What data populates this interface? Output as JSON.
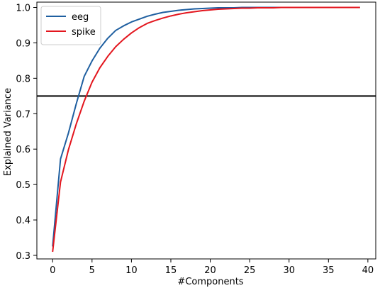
{
  "chart_data": {
    "type": "line",
    "title": "",
    "xlabel": "#Components",
    "ylabel": "Explained Variance",
    "xlim": [
      -2,
      41
    ],
    "ylim": [
      0.29,
      1.015
    ],
    "xticks": [
      "0",
      "5",
      "10",
      "15",
      "20",
      "25",
      "30",
      "35",
      "40"
    ],
    "yticks": [
      "0.3",
      "0.4",
      "0.5",
      "0.6",
      "0.7",
      "0.8",
      "0.9",
      "1.0"
    ],
    "grid": false,
    "legend": "top-left",
    "hline": 0.75,
    "hline_color": "#000000",
    "x": [
      0,
      1,
      2,
      3,
      4,
      5,
      6,
      7,
      8,
      9,
      10,
      11,
      12,
      13,
      14,
      15,
      16,
      17,
      18,
      19,
      20,
      21,
      22,
      23,
      24,
      25,
      26,
      27,
      28,
      29,
      30,
      31,
      32,
      33,
      34,
      35,
      36,
      37,
      38,
      39
    ],
    "series": [
      {
        "name": "eeg",
        "color": "#1f5fa0",
        "values": [
          0.325,
          0.572,
          0.645,
          0.728,
          0.805,
          0.849,
          0.885,
          0.913,
          0.935,
          0.948,
          0.959,
          0.967,
          0.975,
          0.981,
          0.986,
          0.989,
          0.992,
          0.994,
          0.996,
          0.997,
          0.998,
          0.999,
          0.999,
          0.999,
          1.0,
          1.0,
          1.0,
          1.0,
          1.0,
          1.0,
          1.0,
          1.0,
          1.0,
          1.0,
          1.0,
          1.0,
          1.0,
          1.0,
          1.0,
          1.0
        ]
      },
      {
        "name": "spike",
        "color": "#e3161e",
        "values": [
          0.31,
          0.507,
          0.598,
          0.671,
          0.735,
          0.789,
          0.83,
          0.862,
          0.889,
          0.91,
          0.928,
          0.943,
          0.955,
          0.963,
          0.97,
          0.976,
          0.981,
          0.985,
          0.988,
          0.991,
          0.993,
          0.995,
          0.996,
          0.997,
          0.998,
          0.998,
          0.999,
          0.999,
          0.999,
          1.0,
          1.0,
          1.0,
          1.0,
          1.0,
          1.0,
          1.0,
          1.0,
          1.0,
          1.0,
          1.0
        ]
      }
    ]
  }
}
